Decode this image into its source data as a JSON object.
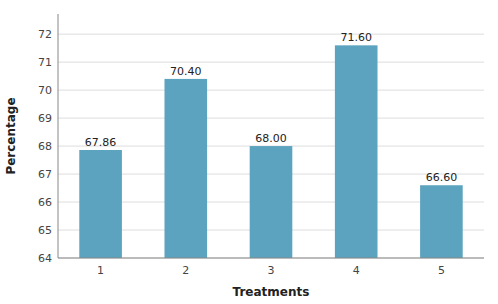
{
  "chart_data": {
    "type": "bar",
    "title": "",
    "xlabel": "Treatments",
    "ylabel": "Percentage",
    "categories": [
      "1",
      "2",
      "3",
      "4",
      "5"
    ],
    "values": [
      67.86,
      70.4,
      68.0,
      71.6,
      66.6
    ],
    "value_labels": [
      "67.86",
      "70.40",
      "68.00",
      "71.60",
      "66.60"
    ],
    "color": "#5ba3be",
    "ylim": [
      64,
      72.72
    ],
    "yticks": [
      64,
      65,
      66,
      67,
      68,
      69,
      70,
      71,
      72
    ],
    "grid": true,
    "data_labels": true
  }
}
